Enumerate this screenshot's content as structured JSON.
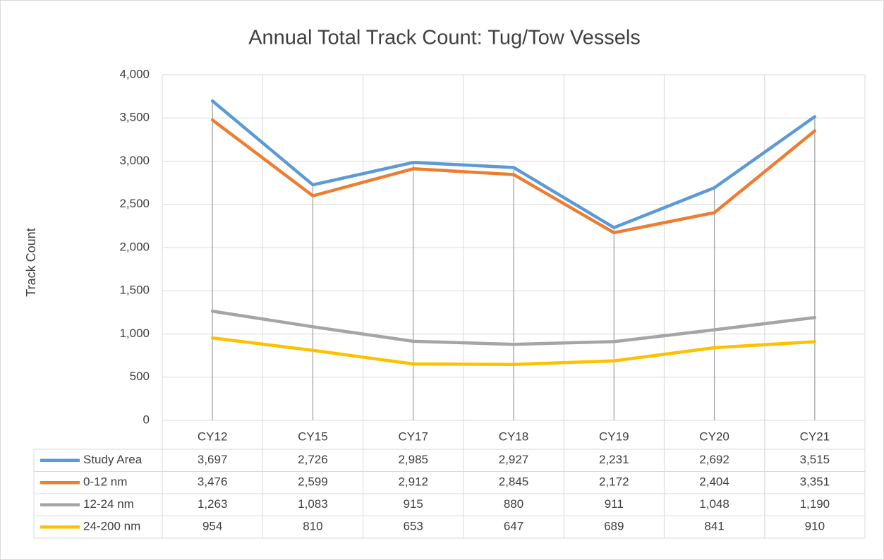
{
  "chart_data": {
    "type": "line",
    "title": "Annual Total Track Count: Tug/Tow Vessels",
    "y_label": "Track Count",
    "categories": [
      "CY12",
      "CY15",
      "CY17",
      "CY18",
      "CY19",
      "CY20",
      "CY21"
    ],
    "series": [
      {
        "name": "Study Area",
        "color": "#5b9bd5",
        "values": [
          3697,
          2726,
          2985,
          2927,
          2231,
          2692,
          3515
        ],
        "value_labels": [
          "3,697",
          "2,726",
          "2,985",
          "2,927",
          "2,231",
          "2,692",
          "3,515"
        ]
      },
      {
        "name": "0-12 nm",
        "color": "#ed7d31",
        "values": [
          3476,
          2599,
          2912,
          2845,
          2172,
          2404,
          3351
        ],
        "value_labels": [
          "3,476",
          "2,599",
          "2,912",
          "2,845",
          "2,172",
          "2,404",
          "3,351"
        ]
      },
      {
        "name": "12-24 nm",
        "color": "#a5a5a5",
        "values": [
          1263,
          1083,
          915,
          880,
          911,
          1048,
          1190
        ],
        "value_labels": [
          "1,263",
          "1,083",
          "915",
          "880",
          "911",
          "1,048",
          "1,190"
        ]
      },
      {
        "name": "24-200 nm",
        "color": "#ffc000",
        "values": [
          954,
          810,
          653,
          647,
          689,
          841,
          910
        ],
        "value_labels": [
          "954",
          "810",
          "653",
          "647",
          "689",
          "841",
          "910"
        ]
      }
    ],
    "ylim": [
      0,
      4000
    ],
    "yticks": [
      0,
      500,
      {
        "value": 1000,
        "label": "1,000"
      },
      {
        "value": 1500,
        "label": "1,500"
      },
      {
        "value": 2000,
        "label": "2,000"
      },
      {
        "value": 2500,
        "label": "2,500"
      },
      {
        "value": 3000,
        "label": "3,000"
      },
      {
        "value": 3500,
        "label": "3,500"
      },
      {
        "value": 4000,
        "label": "4,000"
      }
    ],
    "grid": true,
    "data_table": true
  }
}
